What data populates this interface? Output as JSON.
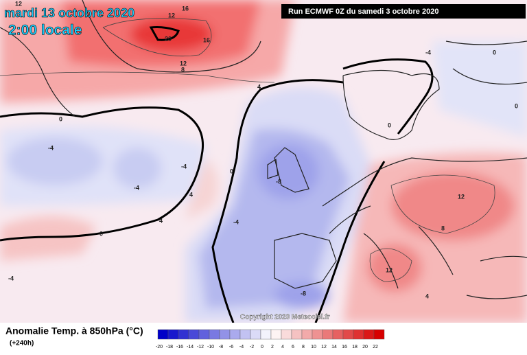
{
  "header": {
    "date": "mardi 13 octobre 2020",
    "time": "2:00 locale",
    "run": "Run ECMWF 0Z du samedi 3 octobre 2020"
  },
  "footer": {
    "title": "Anomalie Temp. à 850hPa (°C)",
    "lead": "(+240h)",
    "copyright": "Copyright 2020 Meteociel.fr"
  },
  "legend": {
    "ticks": [
      -20,
      -18,
      -16,
      -14,
      -12,
      -10,
      -8,
      -6,
      -4,
      -2,
      0,
      2,
      4,
      6,
      8,
      10,
      12,
      14,
      16,
      18,
      20,
      22
    ]
  },
  "map": {
    "contour_labels": [
      "12",
      "16",
      "12",
      "20",
      "16",
      "12",
      "8",
      "4",
      "0",
      "-4",
      "-4",
      "-4",
      "-4",
      "4",
      "0",
      "-8",
      "-4",
      "0",
      "12",
      "8",
      "12",
      "4",
      "-8",
      "-4",
      "0",
      "0",
      "4",
      "0"
    ]
  }
}
